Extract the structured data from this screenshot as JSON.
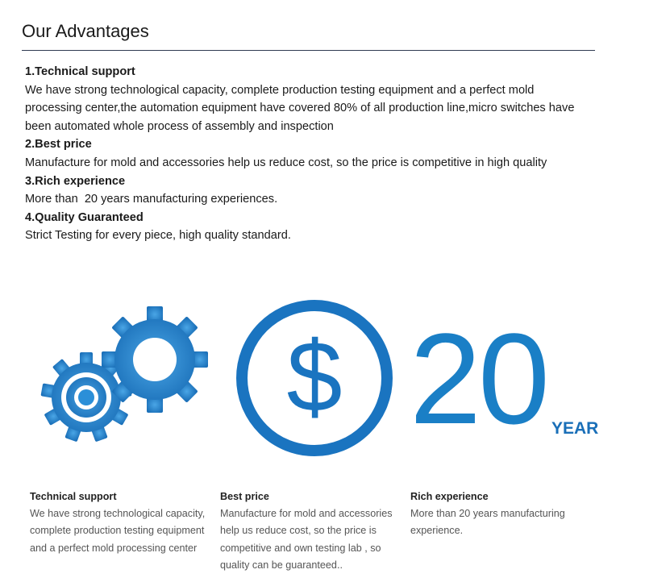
{
  "header": {
    "title": "Our Advantages"
  },
  "advantages": [
    {
      "heading": "1.Technical support",
      "text": "We have strong technological capacity, complete production testing equipment and a perfect mold processing center,the automation equipment have covered 80% of all production line,micro switches have been automated whole process of assembly and inspection"
    },
    {
      "heading": "2.Best price",
      "text": "Manufacture for mold and accessories help us reduce cost, so the price is competitive in high quality"
    },
    {
      "heading": "3.Rich experience",
      "text": "More than  20 years manufacturing experiences."
    },
    {
      "heading": "4.Quality Guaranteed",
      "text": "Strict Testing for every piece, high quality standard."
    }
  ],
  "graphics": {
    "years_number": "20",
    "years_unit": "YEAR",
    "icons": [
      "gears-icon",
      "dollar-icon"
    ],
    "accent_color": "#1a7fc6"
  },
  "captions": [
    {
      "heading": "Technical support",
      "lines": [
        "We have strong technological capacity,",
        "complete production testing equipment",
        "and a perfect mold processing center"
      ]
    },
    {
      "heading": "Best price",
      "lines": [
        "Manufacture for mold and accessories",
        "help us reduce cost, so the price is",
        "competitive and own testing lab , so",
        "quality can be guaranteed.."
      ]
    },
    {
      "heading": "Rich experience",
      "lines": [
        "More than 20 years manufacturing",
        "experience."
      ]
    }
  ]
}
